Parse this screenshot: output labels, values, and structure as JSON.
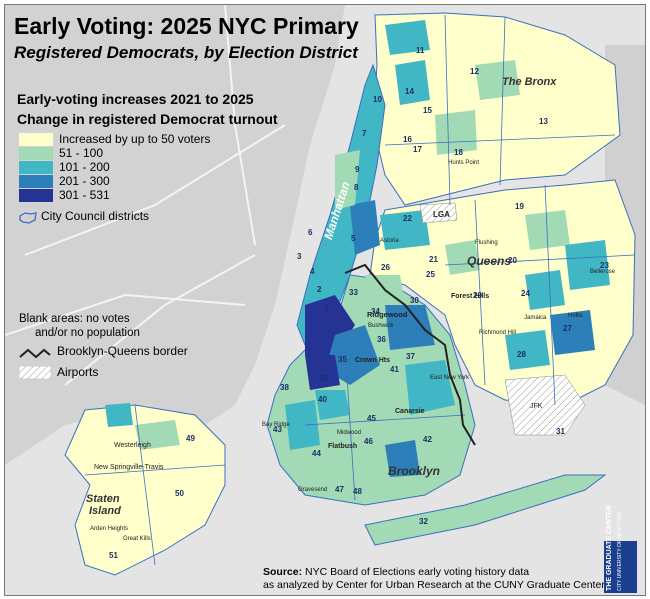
{
  "title": "Early Voting: 2025 NYC Primary",
  "subtitle": "Registered Democrats, by Election District",
  "legend": {
    "heading1": "Early-voting increases 2021 to 2025",
    "heading2": "Change in registered Democrat turnout",
    "classes": [
      {
        "label": "Increased by up to 50 voters",
        "color": "#ffffcc"
      },
      {
        "label": "51 - 100",
        "color": "#a1dab4"
      },
      {
        "label": "101 - 200",
        "color": "#41b6c4"
      },
      {
        "label": "201 - 300",
        "color": "#2c7fb8"
      },
      {
        "label": "301 - 531",
        "color": "#253494"
      }
    ],
    "council": "City Council districts",
    "blank_line1": "Blank areas: no votes",
    "blank_line2": "and/or no population",
    "border": "Brooklyn-Queens border",
    "airports": "Airports"
  },
  "boroughs": {
    "bronx": "The Bronx",
    "manhattan": "Manhattan",
    "queens": "Queens",
    "brooklyn": "Brooklyn",
    "staten_line1": "Staten",
    "staten_line2": "Island"
  },
  "places": {
    "lga": "LGA",
    "jfk": "JFK",
    "astoria": "Astoria",
    "ridgewood": "Ridgewood",
    "flushing": "Flushing",
    "bellerose": "Bellerose",
    "crown_hts": "Crown Hts",
    "flatbush": "Flatbush",
    "canarsie": "Canarsie",
    "westerleigh": "Westerleigh",
    "new_springville": "New Springville-Travis",
    "great_kills": "Great Kills",
    "arden": "Arden Heights",
    "gravesend": "Gravesend",
    "richmond_hill": "Richmond Hill",
    "forest_hills": "Forest Hills",
    "hunts_point": "Hunts Point",
    "jamaica": "Jamaica",
    "hollis": "Hollis",
    "east_new_york": "East New York",
    "bushwick": "Bushwick",
    "midwood": "Midwood",
    "bay_ridge": "Bay Ridge"
  },
  "districts": [
    "11",
    "12",
    "13",
    "14",
    "15",
    "16",
    "17",
    "18",
    "10",
    "7",
    "8",
    "9",
    "6",
    "3",
    "4",
    "5",
    "1",
    "2",
    "22",
    "26",
    "21",
    "25",
    "20",
    "19",
    "23",
    "24",
    "29",
    "30",
    "28",
    "27",
    "31",
    "34",
    "33",
    "35",
    "36",
    "37",
    "38",
    "39",
    "40",
    "41",
    "42",
    "43",
    "44",
    "45",
    "46",
    "47",
    "48",
    "32",
    "49",
    "50",
    "51"
  ],
  "source": {
    "label": "Source:",
    "line1": " NYC Board of Elections early voting history data",
    "line2": "as analyzed by Center for Urban Research at the CUNY Graduate Center."
  },
  "logo": {
    "line1": "THE GRADUATE CENTER",
    "line2": "CITY UNIVERSITY OF NEW YORK"
  }
}
